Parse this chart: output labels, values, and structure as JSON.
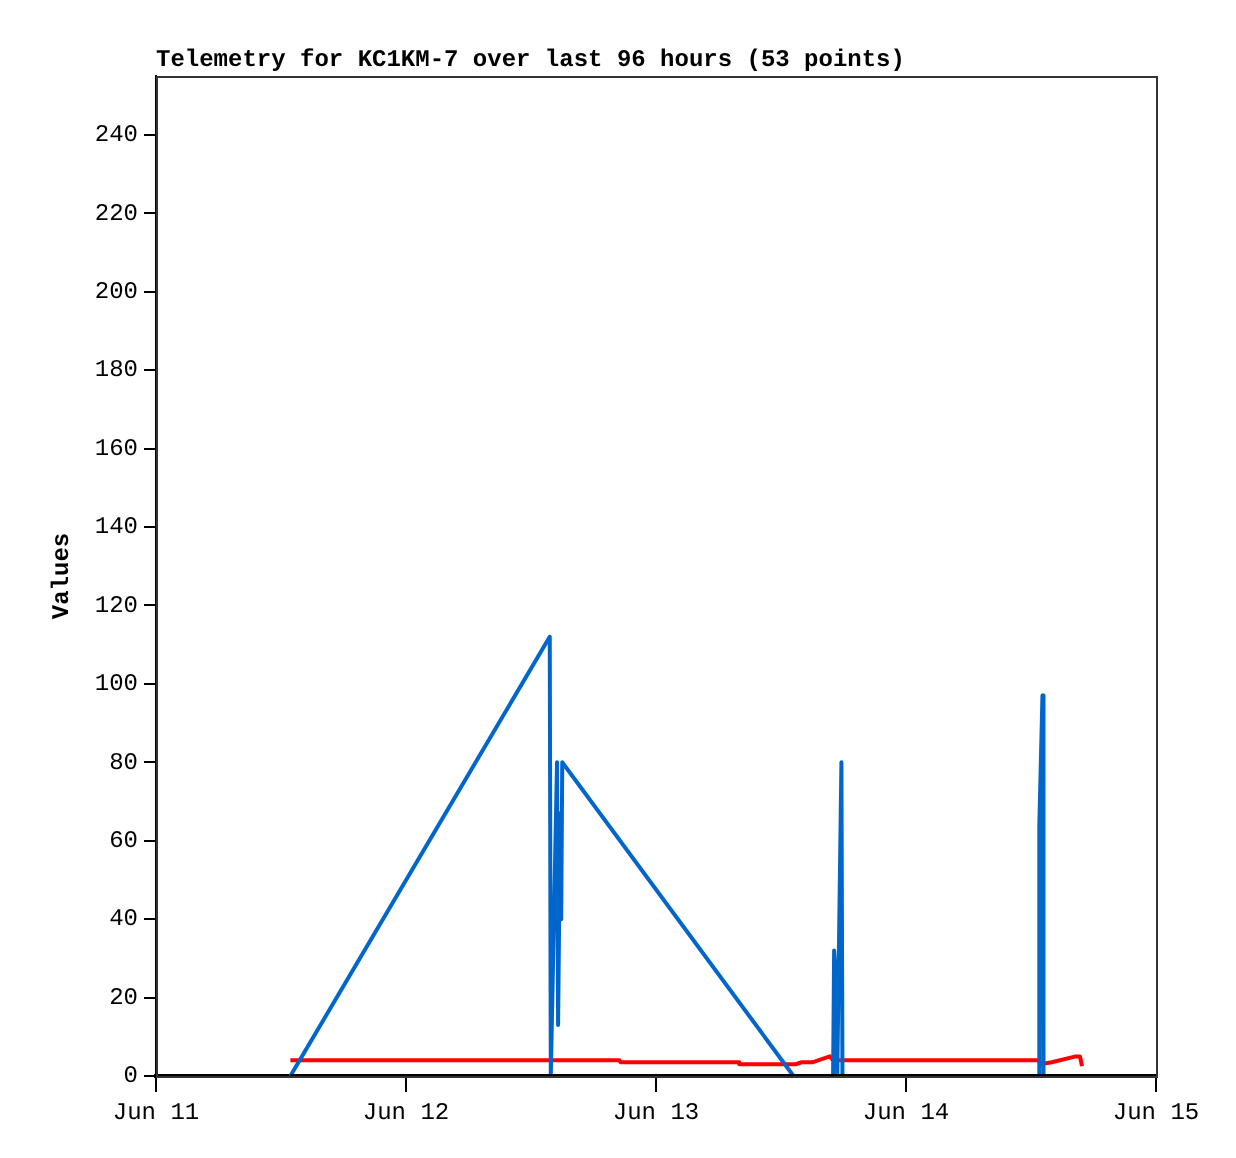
{
  "chart_data": {
    "type": "line",
    "title": "Telemetry for KC1KM-7 over last 96 hours (53 points)",
    "ylabel": "Values",
    "xlim": [
      "--06-11",
      "--06-15"
    ],
    "xticks": [
      {
        "value": "--06-11",
        "label": "Jun 11"
      },
      {
        "value": "--06-12",
        "label": "Jun 12"
      },
      {
        "value": "--06-13",
        "label": "Jun 13"
      },
      {
        "value": "--06-14",
        "label": "Jun 14"
      },
      {
        "value": "--06-15",
        "label": "Jun 15"
      }
    ],
    "ylim": [
      0,
      255
    ],
    "yticks": [
      0,
      20,
      40,
      60,
      80,
      100,
      120,
      140,
      160,
      180,
      200,
      220,
      240
    ],
    "grid": false,
    "legend": false,
    "marker": "none",
    "line_style": "solid",
    "series": [
      {
        "color": "#000000",
        "x": [
          "--06-11T12:54",
          "--06-14T16:54"
        ],
        "values": [
          0,
          0
        ]
      },
      {
        "color": "#0066cc",
        "x": [
          "--06-11T12:54",
          "--06-12T13:48",
          "--06-12T13:54",
          "--06-12T14:30",
          "--06-12T14:36",
          "--06-12T14:48",
          "--06-12T14:54",
          "--06-12T15:00",
          "--06-13T13:12",
          "--06-13T17:00",
          "--06-13T17:06",
          "--06-13T17:18",
          "--06-13T17:24",
          "--06-13T17:48",
          "--06-13T17:54",
          "--06-14T12:42",
          "--06-14T12:48",
          "--06-14T13:06",
          "--06-14T13:12",
          "--06-14T16:54"
        ],
        "values": [
          0,
          112,
          0,
          80,
          13,
          67,
          40,
          80,
          0,
          0,
          32,
          24,
          0,
          80,
          0,
          0,
          64,
          97,
          0,
          0
        ]
      },
      {
        "color": "#ff0000",
        "x": [
          "--06-11T12:54",
          "--06-12T20:30",
          "--06-12T20:36",
          "--06-13T07:54",
          "--06-13T08:00",
          "--06-13T13:24",
          "--06-13T14:00",
          "--06-13T15:00",
          "--06-13T16:42",
          "--06-13T17:00",
          "--06-14T12:42",
          "--06-14T12:54",
          "--06-14T14:00",
          "--06-14T16:18",
          "--06-14T16:42",
          "--06-14T16:54"
        ],
        "values": [
          4,
          4,
          3.5,
          3.5,
          3,
          3,
          3.5,
          3.5,
          5,
          4,
          4,
          3,
          3.5,
          5,
          5,
          2.5
        ]
      }
    ]
  }
}
